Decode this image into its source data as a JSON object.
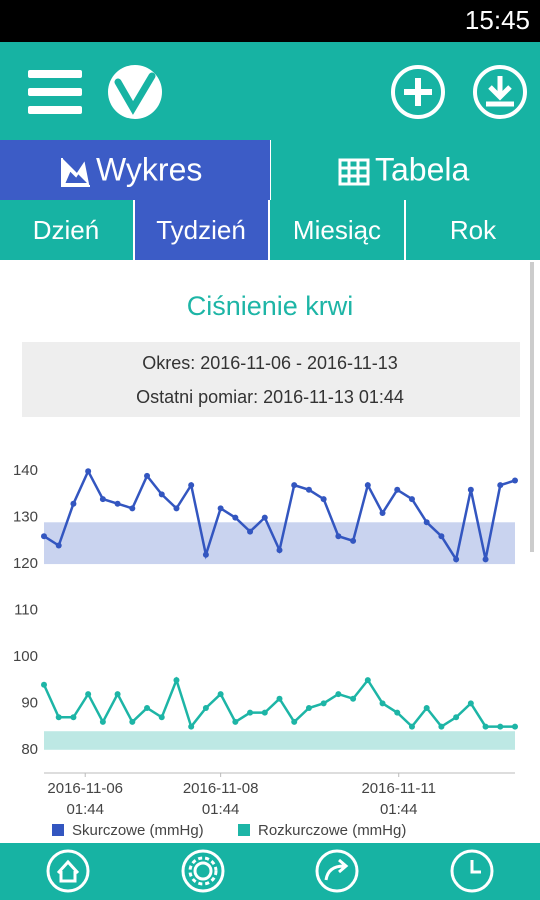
{
  "status_bar": {
    "time": "15:45"
  },
  "tabs": [
    "Wykres",
    "Tabela"
  ],
  "periods": [
    "Dzień",
    "Tydzień",
    "Miesiąc",
    "Rok"
  ],
  "info": {
    "period": "Okres: 2016-11-06 - 2016-11-13",
    "last": "Ostatni pomiar: 2016-11-13 01:44"
  },
  "chart_data": {
    "type": "line",
    "title": "Ciśnienie krwi",
    "xlim": [
      0,
      32
    ],
    "xticks": [
      {
        "value": 2.8,
        "label": [
          "2016-11-06",
          "01:44"
        ]
      },
      {
        "value": 12,
        "label": [
          "2016-11-08",
          "01:44"
        ]
      },
      {
        "value": 24.1,
        "label": [
          "2016-11-11",
          "01:44"
        ]
      }
    ],
    "ylim": [
      75,
      145
    ],
    "yticks": [
      80,
      90,
      100,
      110,
      120,
      130,
      140
    ],
    "bands": [
      {
        "range": [
          120,
          129
        ],
        "color": "#c9d3ef"
      },
      {
        "range": [
          80,
          84
        ],
        "color": "#bde8e4"
      }
    ],
    "series": [
      {
        "name": "Skurczowe (mmHg)",
        "color": "#3356c0",
        "values": [
          126,
          124,
          133,
          140,
          134,
          133,
          132,
          139,
          135,
          132,
          137,
          122,
          132,
          130,
          127,
          130,
          123,
          137,
          136,
          134,
          126,
          125,
          137,
          131,
          136,
          134,
          129,
          126,
          121,
          136,
          121,
          137,
          138
        ]
      },
      {
        "name": "Rozkurczowe (mmHg)",
        "color": "#1db5a6",
        "values": [
          94,
          87,
          87,
          92,
          86,
          92,
          86,
          89,
          87,
          95,
          85,
          89,
          92,
          86,
          88,
          88,
          91,
          86,
          89,
          90,
          92,
          91,
          95,
          90,
          88,
          85,
          89,
          85,
          87,
          90,
          85,
          85,
          85
        ]
      }
    ]
  }
}
